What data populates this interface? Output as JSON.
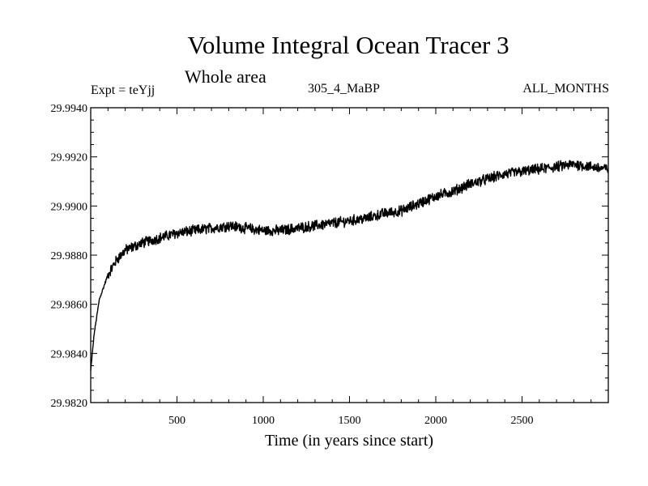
{
  "chart_data": {
    "type": "line",
    "title": "Volume Integral Ocean Tracer 3",
    "subtitle": "Whole area",
    "experiment_label": "Expt = teYjj",
    "run_label": "305_4_MaBP",
    "months_label": "ALL_MONTHS",
    "xlabel": "Time (in years since start)",
    "ylabel": "",
    "xlim": [
      0,
      3000
    ],
    "ylim": [
      29.982,
      29.994
    ],
    "x_ticks": [
      500,
      1000,
      1500,
      2000,
      2500
    ],
    "x_tick_labels": [
      "500",
      "1000",
      "1500",
      "2000",
      "2500"
    ],
    "y_ticks": [
      29.982,
      29.984,
      29.986,
      29.988,
      29.99,
      29.992,
      29.994
    ],
    "y_tick_labels": [
      "29.9820",
      "29.9840",
      "29.9860",
      "29.9880",
      "29.9900",
      "29.9920",
      "29.9940"
    ],
    "grid": false,
    "series": [
      {
        "name": "Ocean Tracer 3",
        "color": "#000000",
        "x": [
          0,
          20,
          50,
          100,
          150,
          200,
          300,
          400,
          500,
          600,
          700,
          800,
          900,
          1000,
          1100,
          1200,
          1300,
          1400,
          1500,
          1600,
          1700,
          1800,
          1900,
          2000,
          2100,
          2200,
          2300,
          2400,
          2500,
          2600,
          2700,
          2800,
          2900,
          3000
        ],
        "y": [
          29.9833,
          29.9848,
          29.9862,
          29.9872,
          29.9878,
          29.9882,
          29.9885,
          29.9887,
          29.9889,
          29.989,
          29.9891,
          29.9892,
          29.9891,
          29.989,
          29.989,
          29.9891,
          29.9892,
          29.9893,
          29.9894,
          29.9895,
          29.9897,
          29.9898,
          29.9901,
          29.9904,
          29.9906,
          29.9909,
          29.9911,
          29.9913,
          29.9914,
          29.9915,
          29.9916,
          29.9917,
          29.9916,
          29.9915
        ]
      }
    ]
  }
}
